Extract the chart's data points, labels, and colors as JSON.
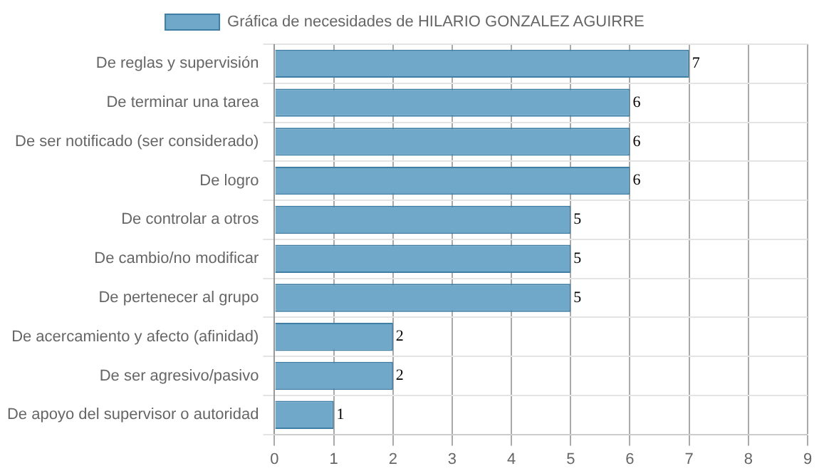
{
  "chart_data": {
    "type": "bar",
    "orientation": "horizontal",
    "categories": [
      "De reglas y supervisión",
      "De terminar una tarea",
      "De ser notificado (ser considerado)",
      "De logro",
      "De controlar a otros",
      "De cambio/no modificar",
      "De pertenecer al grupo",
      "De acercamiento y afecto (afinidad)",
      "De ser agresivo/pasivo",
      "De apoyo del supervisor o autoridad"
    ],
    "series": [
      {
        "name": "Gráfica de necesidades de HILARIO GONZALEZ AGUIRRE",
        "color": "#6fa8c8",
        "values": [
          7,
          6,
          6,
          6,
          5,
          5,
          5,
          2,
          2,
          1
        ]
      }
    ],
    "xlim": [
      0,
      9
    ],
    "xticks": [
      0,
      1,
      2,
      3,
      4,
      5,
      6,
      7,
      8,
      9
    ],
    "grid": true,
    "legend": "top",
    "data_labels": true
  }
}
